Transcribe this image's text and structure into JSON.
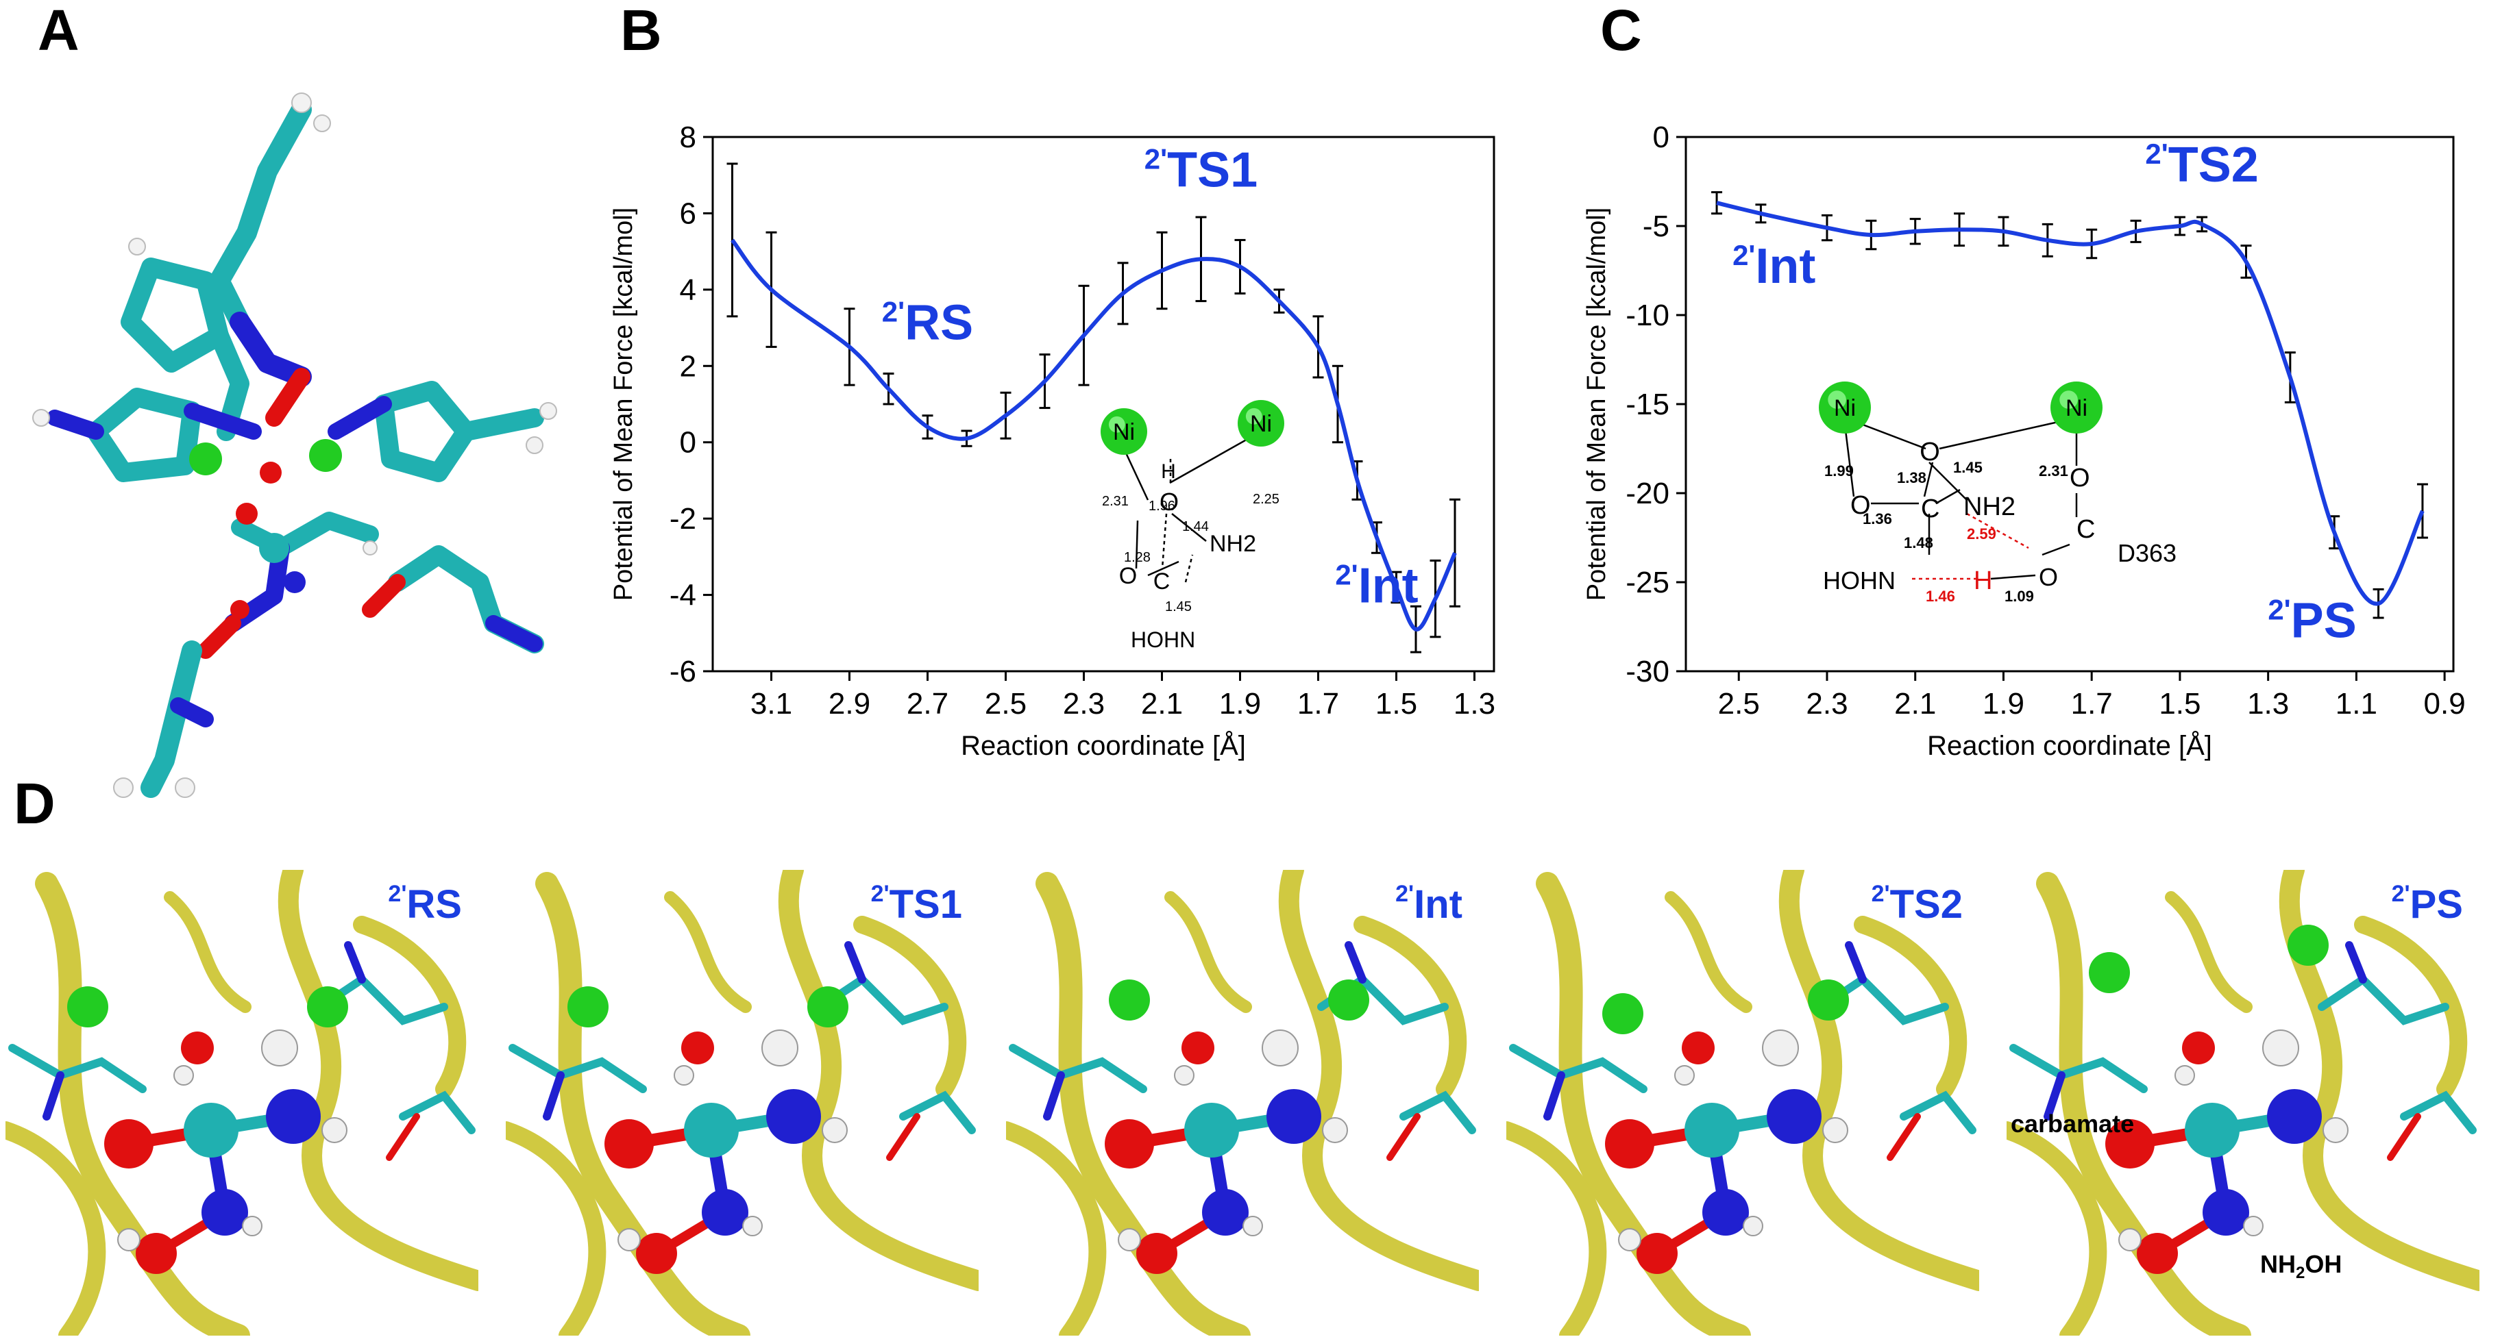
{
  "panels": {
    "A": "A",
    "B": "B",
    "C": "C",
    "D": "D"
  },
  "colors": {
    "line": "#1a3ee0",
    "state_label": "#1a3ee0",
    "ni": "#22cc22",
    "oxygen": "#e01010",
    "nitrogen": "#2020d0",
    "carbon": "#20b0b0",
    "hydrogen": "#f0f0f0",
    "ribbon": "#c8c020"
  },
  "chart_data": [
    {
      "type": "line",
      "ylabel": "Potential of Mean Force [kcal/mol]",
      "xlabel": "Reaction coordinate [Å]",
      "x_reversed": true,
      "xlim": [
        3.25,
        1.25
      ],
      "ylim": [
        -6,
        8
      ],
      "xticks": [
        "3.1",
        "2.9",
        "2.7",
        "2.5",
        "2.3",
        "2.1",
        "1.9",
        "1.7",
        "1.5",
        "1.3"
      ],
      "yticks": [
        "8",
        "6",
        "4",
        "2",
        "0",
        "-2",
        "-4",
        "-6"
      ],
      "series": [
        {
          "x": [
            3.2,
            3.1,
            2.9,
            2.8,
            2.7,
            2.6,
            2.5,
            2.4,
            2.3,
            2.2,
            2.1,
            2.0,
            1.9,
            1.8,
            1.7,
            1.65,
            1.6,
            1.55,
            1.5,
            1.45,
            1.4,
            1.35
          ],
          "y": [
            5.3,
            4.0,
            2.5,
            1.4,
            0.4,
            0.1,
            0.7,
            1.6,
            2.8,
            3.9,
            4.5,
            4.8,
            4.6,
            3.7,
            2.5,
            1.0,
            -1.0,
            -2.5,
            -3.8,
            -4.9,
            -4.1,
            -2.9
          ],
          "err": [
            2.0,
            1.5,
            1.0,
            0.4,
            0.3,
            0.2,
            0.6,
            0.7,
            1.3,
            0.8,
            1.0,
            1.1,
            0.7,
            0.3,
            0.8,
            1.0,
            0.5,
            0.4,
            0.4,
            0.6,
            1.0,
            1.4
          ]
        }
      ],
      "annotations": [
        {
          "sup": "2'",
          "text": "RS",
          "x": 2.7,
          "y": 2.7
        },
        {
          "sup": "2'",
          "text": "TS1",
          "x": 2.0,
          "y": 6.7
        },
        {
          "sup": "2'",
          "text": "Int",
          "x": 1.55,
          "y": -4.2
        }
      ],
      "inset": {
        "atoms": [
          "Ni",
          "Ni",
          "H",
          "O",
          "O",
          "C",
          "NH2",
          "HOHN"
        ],
        "bond_lengths": [
          "2.31",
          "1.96",
          "1.44",
          "2.25",
          "1.28",
          "1.45"
        ]
      }
    },
    {
      "type": "line",
      "ylabel": "Potential of Mean Force [kcal/mol]",
      "xlabel": "Reaction coordinate [Å]",
      "x_reversed": true,
      "xlim": [
        2.62,
        0.88
      ],
      "ylim": [
        -30,
        0
      ],
      "xticks": [
        "2.5",
        "2.3",
        "2.1",
        "1.9",
        "1.7",
        "1.5",
        "1.3",
        "1.1",
        "0.9"
      ],
      "yticks": [
        "0",
        "-5",
        "-10",
        "-15",
        "-20",
        "-25",
        "-30"
      ],
      "series": [
        {
          "x": [
            2.55,
            2.45,
            2.3,
            2.2,
            2.1,
            2.0,
            1.9,
            1.8,
            1.7,
            1.6,
            1.5,
            1.45,
            1.35,
            1.25,
            1.15,
            1.05,
            0.95
          ],
          "y": [
            -3.7,
            -4.3,
            -5.1,
            -5.5,
            -5.3,
            -5.2,
            -5.3,
            -5.8,
            -6.0,
            -5.3,
            -5.0,
            -4.9,
            -7.0,
            -13.5,
            -22.2,
            -26.2,
            -21.0
          ],
          "err": [
            0.6,
            0.5,
            0.7,
            0.8,
            0.7,
            0.9,
            0.8,
            0.9,
            0.8,
            0.6,
            0.5,
            0.4,
            0.9,
            1.4,
            0.9,
            0.8,
            1.5
          ]
        }
      ],
      "annotations": [
        {
          "sup": "2'",
          "text": "Int",
          "x": 2.42,
          "y": -8.2
        },
        {
          "sup": "2'",
          "text": "TS2",
          "x": 1.45,
          "y": -2.5
        },
        {
          "sup": "2'",
          "text": "PS",
          "x": 1.2,
          "y": -28.1
        }
      ],
      "inset": {
        "atoms": [
          "Ni",
          "Ni",
          "O",
          "O",
          "C",
          "NH2",
          "O",
          "C",
          "D363",
          "HOHN",
          "H",
          "O"
        ],
        "bond_lengths": [
          "1.99",
          "1.38",
          "1.45",
          "2.31",
          "1.36",
          "1.48",
          "2.59",
          "1.46",
          "1.09"
        ]
      }
    }
  ],
  "snapshots": [
    {
      "sup": "2'",
      "label": "RS"
    },
    {
      "sup": "2'",
      "label": "TS1"
    },
    {
      "sup": "2'",
      "label": "Int"
    },
    {
      "sup": "2'",
      "label": "TS2"
    },
    {
      "sup": "2'",
      "label": "PS",
      "notes": {
        "carbamate": "carbamate",
        "nh2oh_main": "NH",
        "nh2oh_sub": "2",
        "nh2oh_tail": "OH"
      }
    }
  ]
}
